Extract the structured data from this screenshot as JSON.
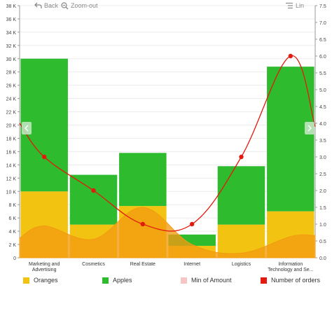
{
  "toolbar": {
    "back_label": "Back",
    "zoom_out_label": "Zoom-out",
    "scale_label": "Lin"
  },
  "colors": {
    "oranges": "#f2c411",
    "apples": "#2ebb2e",
    "min_of_amount": "#f5c6c4",
    "number_of_orders": "#e31a0e",
    "area_fill": "#f29b12"
  },
  "chart_data": {
    "type": "bar",
    "stacked": true,
    "categories": [
      [
        "Marketing and",
        "Advertising"
      ],
      [
        "Cosmetics"
      ],
      [
        "Real Estate"
      ],
      [
        "Internet"
      ],
      [
        "Logistics"
      ],
      [
        "Information",
        "Technology and Se..."
      ]
    ],
    "series": [
      {
        "name": "Oranges",
        "type": "bar",
        "axis": "left",
        "values": [
          10000,
          5000,
          7800,
          1800,
          5000,
          7000
        ]
      },
      {
        "name": "Apples",
        "type": "bar",
        "axis": "left",
        "values": [
          20000,
          7500,
          8000,
          1700,
          8800,
          21800
        ]
      },
      {
        "name": "Min of Amount",
        "type": "area",
        "axis": "left",
        "values": [
          4800,
          2800,
          7600,
          2000,
          700,
          3200
        ]
      },
      {
        "name": "Number of orders",
        "type": "line",
        "axis": "right",
        "values": [
          3.0,
          2.0,
          1.0,
          1.0,
          3.0,
          6.0
        ]
      }
    ],
    "y_left": {
      "min": 0,
      "max": 38000,
      "step": 2000,
      "tick_labels": [
        "0",
        "2 K",
        "4 K",
        "6 K",
        "8 K",
        "10 K",
        "12 K",
        "14 K",
        "16 K",
        "18 K",
        "20 K",
        "22 K",
        "24 K",
        "26 K",
        "28 K",
        "30 K",
        "32 K",
        "34 K",
        "36 K",
        "38 K"
      ]
    },
    "y_right": {
      "min": 0,
      "max": 7.5,
      "step": 0.5,
      "tick_labels": [
        "0.0",
        "0.5",
        "1.0",
        "1.5",
        "2.0",
        "2.5",
        "3.0",
        "3.5",
        "4.0",
        "4.5",
        "5.0",
        "5.5",
        "6.0",
        "6.5",
        "7.0",
        "7.5"
      ]
    },
    "legend": {
      "position": "bottom",
      "items": [
        "Oranges",
        "Apples",
        "Min of Amount",
        "Number of orders"
      ]
    },
    "grid": true,
    "title": "",
    "xlabel": "",
    "ylabel": ""
  }
}
